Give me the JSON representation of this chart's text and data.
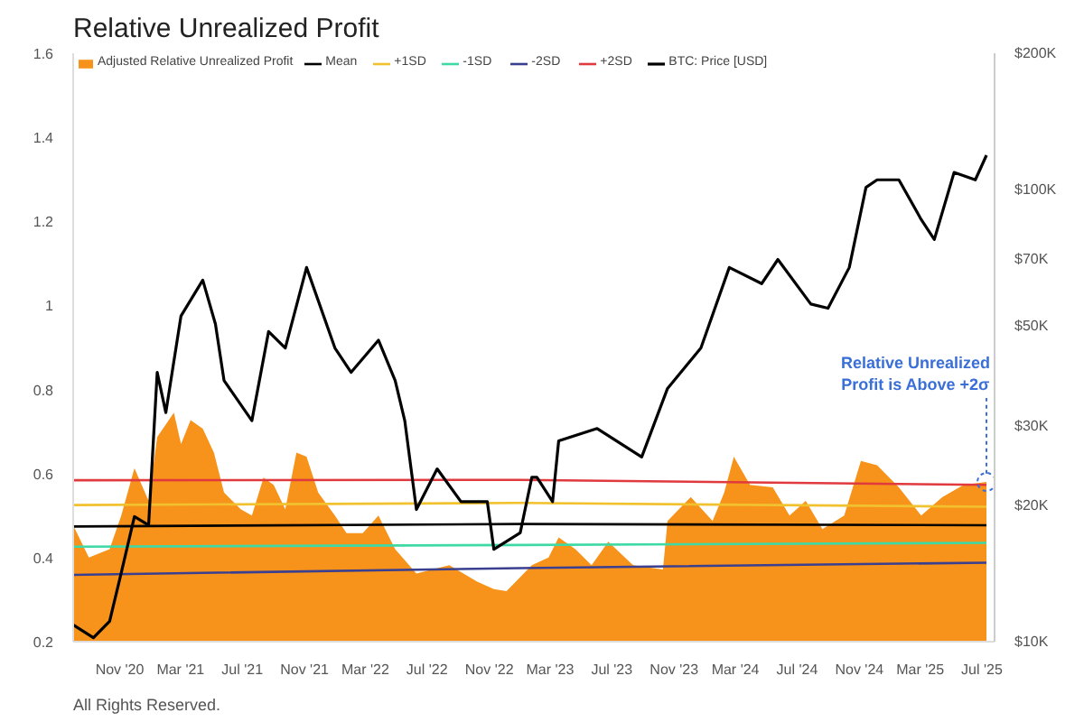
{
  "chart_data": {
    "type": "area",
    "title": "Relative Unrealized Profit",
    "xlim": [
      "2020-08-01",
      "2025-07-26"
    ],
    "xticks": [
      {
        "value": "2020-11-01",
        "label": "Nov '20"
      },
      {
        "value": "2021-03-01",
        "label": "Mar '21"
      },
      {
        "value": "2021-07-01",
        "label": "Jul '21"
      },
      {
        "value": "2021-11-01",
        "label": "Nov '21"
      },
      {
        "value": "2022-03-01",
        "label": "Mar '22"
      },
      {
        "value": "2022-07-01",
        "label": "Jul '22"
      },
      {
        "value": "2022-11-01",
        "label": "Nov '22"
      },
      {
        "value": "2023-03-01",
        "label": "Mar '23"
      },
      {
        "value": "2023-07-01",
        "label": "Jul '23"
      },
      {
        "value": "2023-11-01",
        "label": "Nov '23"
      },
      {
        "value": "2024-03-01",
        "label": "Mar '24"
      },
      {
        "value": "2024-07-01",
        "label": "Jul '24"
      },
      {
        "value": "2024-11-01",
        "label": "Nov '24"
      },
      {
        "value": "2025-03-01",
        "label": "Mar '25"
      },
      {
        "value": "2025-07-01",
        "label": "Jul '25"
      }
    ],
    "ylim": [
      0.2,
      1.6
    ],
    "yticks": [
      0.2,
      0.4,
      0.6,
      0.8,
      1,
      1.2,
      1.4,
      1.6
    ],
    "y2lim": [
      10000,
      200000
    ],
    "log": "y2",
    "y2ticks": [
      {
        "value": 10000,
        "label": "$10K"
      },
      {
        "value": 20000,
        "label": "$20K"
      },
      {
        "value": 30000,
        "label": "$30K"
      },
      {
        "value": 50000,
        "label": "$50K"
      },
      {
        "value": 70000,
        "label": "$70K"
      },
      {
        "value": 100000,
        "label": "$100K"
      },
      {
        "value": 200000,
        "label": "$200K"
      }
    ],
    "grid": false,
    "legend": "top",
    "series": [
      {
        "name": "Adjusted Relative Unrealized Profit",
        "color": "#f7931a",
        "x": [
          "2020-08-01",
          "2020-09-01",
          "2020-10-12",
          "2020-11-04",
          "2020-11-30",
          "2020-12-28",
          "2021-01-14",
          "2021-02-16",
          "2021-03-02",
          "2021-03-21",
          "2021-04-14",
          "2021-05-06",
          "2021-05-26",
          "2021-06-28",
          "2021-07-20",
          "2021-08-12",
          "2021-09-01",
          "2021-09-24",
          "2021-10-16",
          "2021-11-05",
          "2021-11-28",
          "2021-12-31",
          "2022-01-23",
          "2022-02-24",
          "2022-03-27",
          "2022-04-29",
          "2022-06-10",
          "2022-08-14",
          "2022-10-08",
          "2022-11-10",
          "2022-12-05",
          "2023-01-24",
          "2023-02-26",
          "2023-03-18",
          "2023-04-20",
          "2023-05-22",
          "2023-06-24",
          "2023-08-12",
          "2023-10-10",
          "2023-10-19",
          "2023-12-04",
          "2024-01-16",
          "2024-02-08",
          "2024-02-27",
          "2024-03-30",
          "2024-05-14",
          "2024-06-16",
          "2024-07-18",
          "2024-08-20",
          "2024-10-02",
          "2024-11-04",
          "2024-12-06",
          "2025-01-18",
          "2025-03-03",
          "2025-04-14",
          "2025-05-26",
          "2025-07-10"
        ],
        "values": [
          0.477,
          0.4,
          0.42,
          0.5,
          0.613,
          0.535,
          0.687,
          0.745,
          0.67,
          0.727,
          0.707,
          0.65,
          0.555,
          0.515,
          0.5,
          0.59,
          0.573,
          0.515,
          0.65,
          0.64,
          0.555,
          0.5,
          0.458,
          0.458,
          0.5,
          0.42,
          0.362,
          0.382,
          0.343,
          0.325,
          0.32,
          0.382,
          0.4,
          0.448,
          0.42,
          0.382,
          0.438,
          0.382,
          0.372,
          0.487,
          0.544,
          0.487,
          0.555,
          0.64,
          0.573,
          0.567,
          0.5,
          0.535,
          0.468,
          0.5,
          0.63,
          0.62,
          0.567,
          0.5,
          0.544,
          0.573,
          0.58
        ]
      },
      {
        "name": "Mean",
        "type": "line",
        "color": "#000000",
        "x": [
          "2020-08-01",
          "2023-01-01",
          "2025-07-10"
        ],
        "values": [
          0.474,
          0.48,
          0.477
        ]
      },
      {
        "name": "+1SD",
        "type": "line",
        "color": "#f2c12e",
        "x": [
          "2020-08-01",
          "2023-01-01",
          "2025-07-10"
        ],
        "values": [
          0.525,
          0.53,
          0.521
        ]
      },
      {
        "name": "-1SD",
        "type": "line",
        "color": "#3fd9a6",
        "x": [
          "2020-08-01",
          "2023-01-01",
          "2025-07-10"
        ],
        "values": [
          0.426,
          0.43,
          0.435
        ]
      },
      {
        "name": "-2SD",
        "type": "line",
        "color": "#3a3f8f",
        "x": [
          "2020-08-01",
          "2023-01-01",
          "2025-07-10"
        ],
        "values": [
          0.359,
          0.375,
          0.388
        ]
      },
      {
        "name": "+2SD",
        "type": "line",
        "color": "#e0393e",
        "x": [
          "2020-08-01",
          "2023-01-01",
          "2025-07-10"
        ],
        "values": [
          0.584,
          0.585,
          0.573
        ]
      },
      {
        "name": "BTC: Price [USD]",
        "type": "line",
        "color": "#000000",
        "axis": "y2",
        "x": [
          "2020-08-01",
          "2020-09-10",
          "2020-10-12",
          "2020-11-04",
          "2020-11-30",
          "2020-12-28",
          "2021-01-14",
          "2021-01-31",
          "2021-03-02",
          "2021-04-14",
          "2021-05-09",
          "2021-05-26",
          "2021-07-20",
          "2021-08-22",
          "2021-09-24",
          "2021-11-05",
          "2021-12-31",
          "2022-02-01",
          "2022-03-27",
          "2022-04-29",
          "2022-05-18",
          "2022-06-10",
          "2022-07-21",
          "2022-09-06",
          "2022-10-28",
          "2022-11-10",
          "2023-01-01",
          "2023-01-24",
          "2023-02-03",
          "2023-03-06",
          "2023-03-18",
          "2023-06-02",
          "2023-08-29",
          "2023-10-19",
          "2023-12-24",
          "2024-02-18",
          "2024-04-22",
          "2024-05-24",
          "2024-07-28",
          "2024-08-31",
          "2024-10-12",
          "2024-11-14",
          "2024-12-06",
          "2025-01-18",
          "2025-03-03",
          "2025-03-29",
          "2025-05-07",
          "2025-06-18",
          "2025-07-10"
        ],
        "values": [
          10900,
          10200,
          11100,
          14200,
          18900,
          18100,
          39400,
          32100,
          52500,
          63000,
          50400,
          37800,
          30800,
          48500,
          44600,
          67200,
          44600,
          39400,
          46400,
          37800,
          30800,
          19600,
          24100,
          20400,
          20400,
          16000,
          17400,
          23100,
          23100,
          20400,
          27800,
          29600,
          25600,
          36300,
          44600,
          67200,
          61900,
          70000,
          55800,
          54600,
          67200,
          101000,
          105000,
          105000,
          85800,
          77500,
          109000,
          105000,
          119000
        ]
      }
    ],
    "annotations": [
      {
        "text": "Relative Unrealized\nProfit is Above +2σ",
        "x": "2025-07-10",
        "y": 0.58
      },
      "All Rights Reserved."
    ]
  }
}
